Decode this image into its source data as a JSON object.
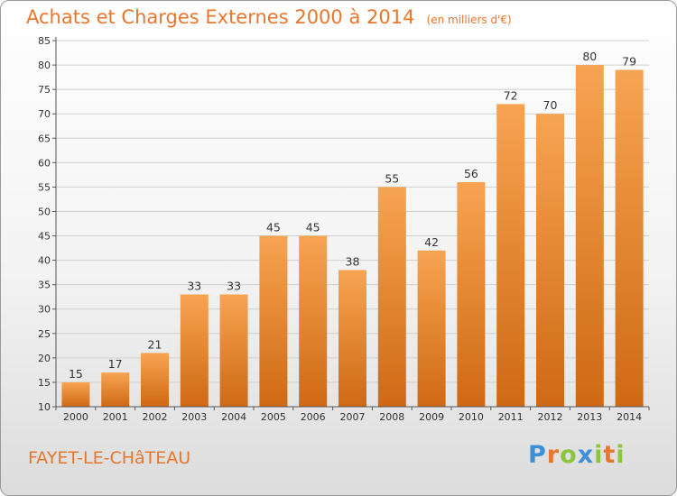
{
  "title": "Achats et Charges Externes 2000 à 2014",
  "subtitle": "(en milliers d'€)",
  "commune": "FAYET-LE-CHâTEAU",
  "logo": [
    "P",
    "r",
    "o",
    "x",
    "i",
    "t",
    "i"
  ],
  "colors": {
    "bar_light": "#f7a452",
    "bar_dark": "#cf6914",
    "title": "#e8772e",
    "logo": [
      "#3f8fd8",
      "#e8772e",
      "#8cc63f",
      "#3f8fd8",
      "#8cc63f",
      "#e8772e",
      "#8cc63f"
    ]
  },
  "chart_data": {
    "type": "bar",
    "categories": [
      "2000",
      "2001",
      "2002",
      "2003",
      "2004",
      "2005",
      "2006",
      "2007",
      "2008",
      "2009",
      "2010",
      "2011",
      "2012",
      "2013",
      "2014"
    ],
    "values": [
      15,
      17,
      21,
      33,
      33,
      45,
      45,
      38,
      55,
      42,
      56,
      72,
      70,
      80,
      79
    ],
    "ylim": [
      10,
      85
    ],
    "yticks": [
      10,
      15,
      20,
      25,
      30,
      35,
      40,
      45,
      50,
      55,
      60,
      65,
      70,
      75,
      80,
      85
    ],
    "grid": true
  }
}
